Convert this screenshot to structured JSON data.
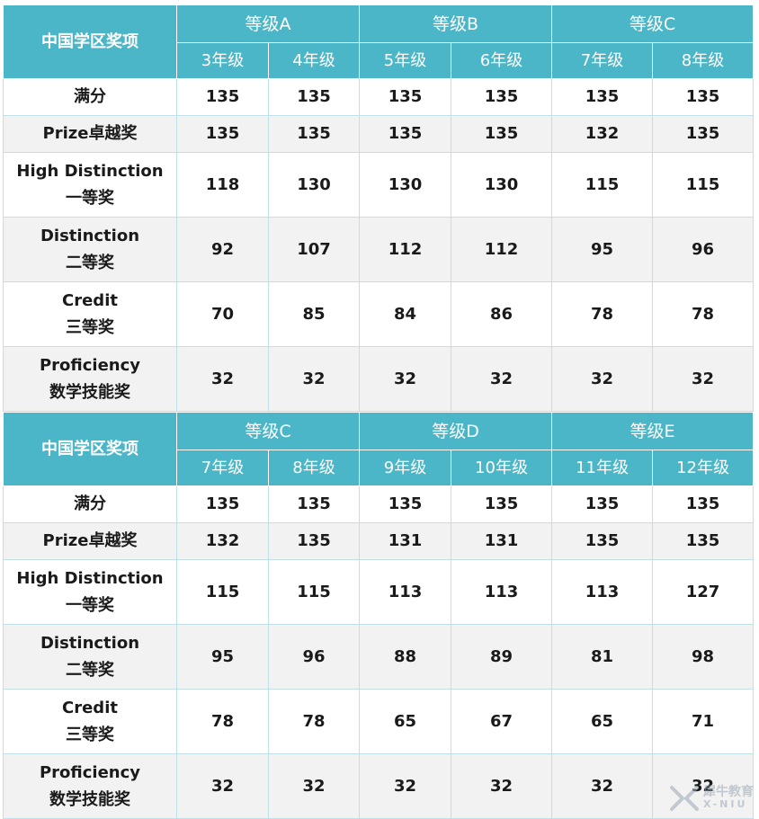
{
  "tables": [
    {
      "corner": "中国学区奖项",
      "levels": [
        "等级A",
        "等级B",
        "等级C"
      ],
      "grades": [
        "3年级",
        "4年级",
        "5年级",
        "6年级",
        "7年级",
        "8年级"
      ],
      "rows": [
        {
          "name": "满分",
          "sub": "",
          "values": [
            "135",
            "135",
            "135",
            "135",
            "135",
            "135"
          ]
        },
        {
          "name": "Prize卓越奖",
          "sub": "",
          "values": [
            "135",
            "135",
            "135",
            "135",
            "132",
            "135"
          ]
        },
        {
          "name": "High Distinction",
          "sub": "一等奖",
          "values": [
            "118",
            "130",
            "130",
            "130",
            "115",
            "115"
          ]
        },
        {
          "name": "Distinction",
          "sub": "二等奖",
          "values": [
            "92",
            "107",
            "112",
            "112",
            "95",
            "96"
          ]
        },
        {
          "name": "Credit",
          "sub": "三等奖",
          "values": [
            "70",
            "85",
            "84",
            "86",
            "78",
            "78"
          ]
        },
        {
          "name": "Proficiency",
          "sub": "数学技能奖",
          "values": [
            "32",
            "32",
            "32",
            "32",
            "32",
            "32"
          ]
        }
      ]
    },
    {
      "corner": "中国学区奖项",
      "levels": [
        "等级C",
        "等级D",
        "等级E"
      ],
      "grades": [
        "7年级",
        "8年级",
        "9年级",
        "10年级",
        "11年级",
        "12年级"
      ],
      "rows": [
        {
          "name": "满分",
          "sub": "",
          "values": [
            "135",
            "135",
            "135",
            "135",
            "135",
            "135"
          ]
        },
        {
          "name": "Prize卓越奖",
          "sub": "",
          "values": [
            "132",
            "135",
            "131",
            "131",
            "135",
            "135"
          ]
        },
        {
          "name": "High Distinction",
          "sub": "一等奖",
          "values": [
            "115",
            "115",
            "113",
            "113",
            "113",
            "127"
          ]
        },
        {
          "name": "Distinction",
          "sub": "二等奖",
          "values": [
            "95",
            "96",
            "88",
            "89",
            "81",
            "98"
          ]
        },
        {
          "name": "Credit",
          "sub": "三等奖",
          "values": [
            "78",
            "78",
            "65",
            "67",
            "65",
            "71"
          ]
        },
        {
          "name": "Proficiency",
          "sub": "数学技能奖",
          "values": [
            "32",
            "32",
            "32",
            "32",
            "32",
            "32"
          ]
        }
      ]
    }
  ],
  "watermark": {
    "text": "犀牛教育",
    "latin": "X-NIU",
    "color": "#9aa7b4"
  },
  "colors": {
    "header": "#4bb6c7",
    "row_alt": "#f2f2f2",
    "border": "#bfe0e6"
  }
}
